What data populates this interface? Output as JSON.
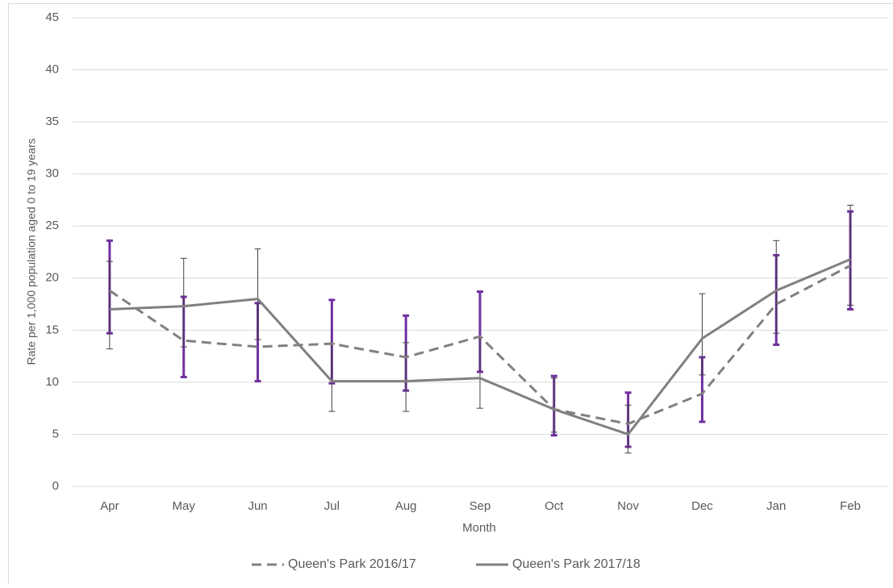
{
  "chart_data": {
    "type": "line",
    "x_label": "Month",
    "y_label": "Rate per 1,000 population aged 0 to 19 years",
    "categories": [
      "Apr",
      "May",
      "Jun",
      "Jul",
      "Aug",
      "Sep",
      "Oct",
      "Nov",
      "Dec",
      "Jan",
      "Feb"
    ],
    "ylim": [
      0,
      45
    ],
    "yticks": [
      0,
      5,
      10,
      15,
      20,
      25,
      30,
      35,
      40,
      45
    ],
    "grid": true,
    "legend": "bottom",
    "series": [
      {
        "name": "Queen's Park 2016/17",
        "color": "#808080",
        "dash": true,
        "error_color": "#7030a0",
        "values": [
          18.8,
          14.0,
          13.4,
          13.7,
          12.4,
          14.4,
          7.4,
          6.0,
          8.9,
          17.5,
          21.2
        ],
        "lower": [
          14.7,
          10.5,
          10.1,
          9.9,
          9.2,
          11.0,
          4.9,
          3.8,
          6.2,
          13.6,
          17.0
        ],
        "upper": [
          23.6,
          18.2,
          17.6,
          17.9,
          16.4,
          18.7,
          10.6,
          9.0,
          12.4,
          22.2,
          26.4
        ]
      },
      {
        "name": "Queen's Park 2017/18",
        "color": "#808080",
        "dash": false,
        "error_color": "#404040",
        "values": [
          17.0,
          17.3,
          18.0,
          10.1,
          10.1,
          10.4,
          7.4,
          5.0,
          14.2,
          18.8,
          21.8
        ],
        "lower": [
          13.2,
          13.4,
          14.1,
          7.2,
          7.2,
          7.5,
          5.2,
          3.2,
          10.7,
          14.7,
          17.4
        ],
        "upper": [
          21.6,
          21.9,
          22.8,
          13.7,
          13.8,
          14.3,
          10.4,
          7.8,
          18.5,
          23.6,
          27.0
        ]
      }
    ]
  }
}
